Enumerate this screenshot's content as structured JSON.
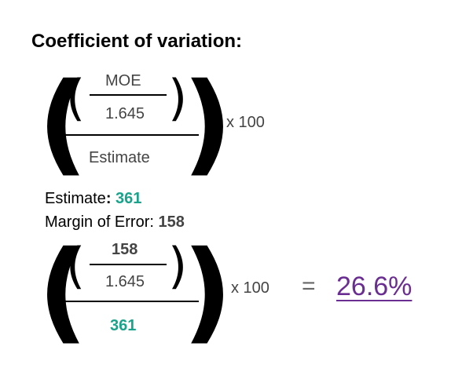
{
  "title": "Coefficient of variation:",
  "formula": {
    "top_label": "MOE",
    "divisor": "1.645",
    "denominator_label": "Estimate",
    "multiplier": "x 100"
  },
  "values": {
    "estimate_label": "Estimate",
    "estimate_sep": ":",
    "estimate_value": "361",
    "moe_label": "Margin of Error:",
    "moe_value": "158"
  },
  "worked": {
    "top_value": "158",
    "divisor": "1.645",
    "denominator_value": "361",
    "multiplier": "x 100",
    "equals": "=",
    "result": "26.6%"
  },
  "colors": {
    "estimate_accent": "#1aa38a",
    "result_accent": "#6a2d91"
  }
}
